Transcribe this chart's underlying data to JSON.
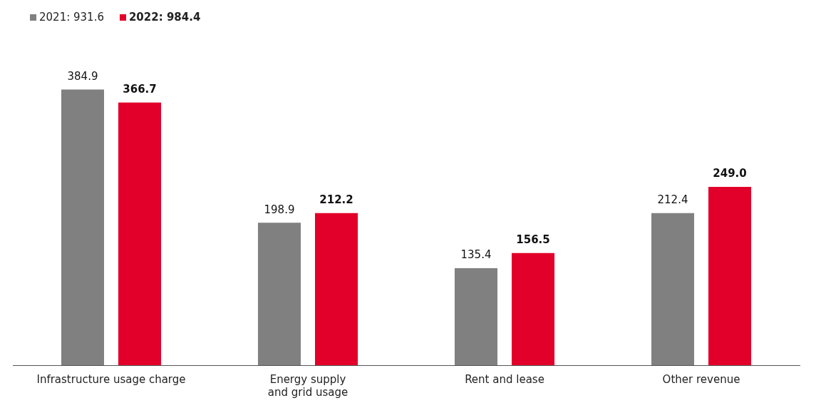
{
  "chart_data": {
    "type": "bar",
    "categories": [
      "Infrastructure usage charge",
      "Energy supply and grid usage",
      "Rent and lease",
      "Other revenue"
    ],
    "series": [
      {
        "name": "2021: 931.6",
        "color": "#808080",
        "values": [
          384.9,
          198.9,
          135.4,
          212.4
        ],
        "value_labels": [
          "384.9",
          "198.9",
          "135.4",
          "212.4"
        ]
      },
      {
        "name": "2022: 984.4",
        "color": "#e2002a",
        "values": [
          366.7,
          212.2,
          156.5,
          249.0
        ],
        "value_labels": [
          "366.7",
          "212.2",
          "156.5",
          "249.0"
        ]
      }
    ],
    "legend": "top left",
    "grid": false
  }
}
